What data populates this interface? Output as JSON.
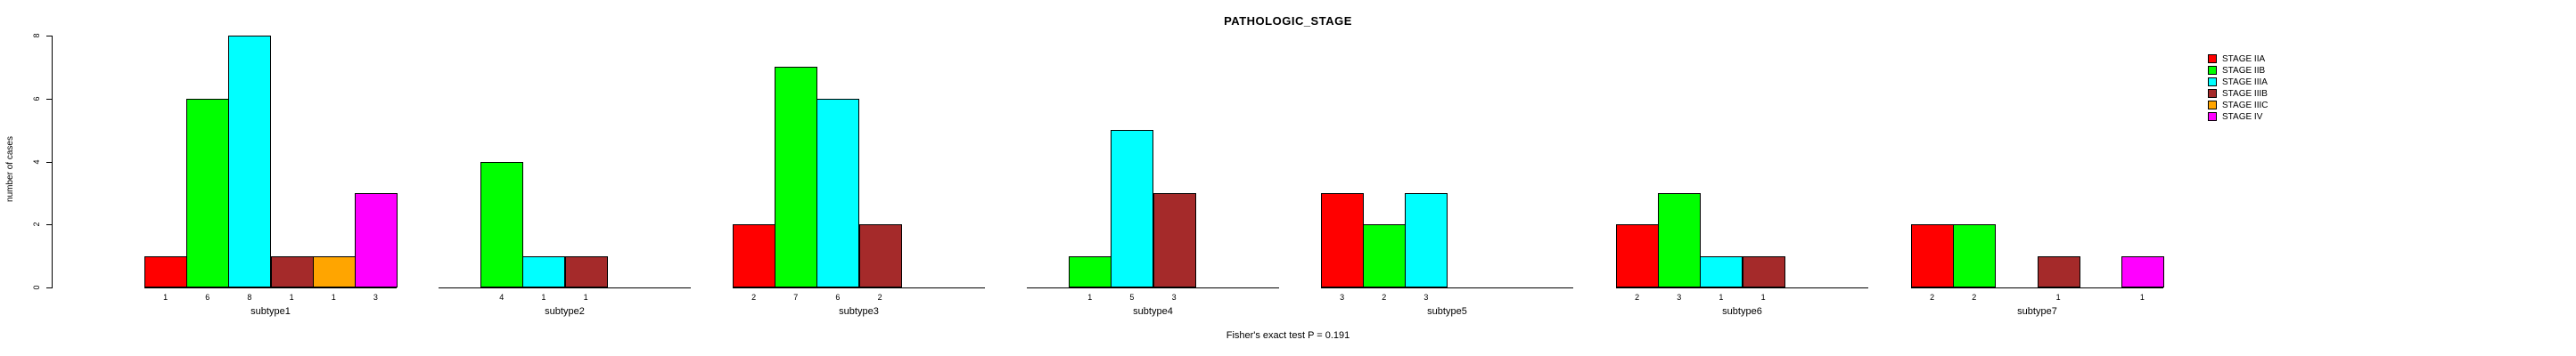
{
  "chart_data": {
    "type": "bar",
    "title": "PATHOLOGIC_STAGE",
    "ylabel": "number of cases",
    "xlabel": "",
    "footer": "Fisher's exact test P = 0.191",
    "ylim": [
      0,
      8
    ],
    "yticks": [
      0,
      2,
      4,
      6,
      8
    ],
    "grid": false,
    "legend_position": "right",
    "bar_value_labels_shown": true,
    "stages": [
      {
        "name": "STAGE IIA",
        "color": "#FF0000"
      },
      {
        "name": "STAGE IIB",
        "color": "#00FF00"
      },
      {
        "name": "STAGE IIIA",
        "color": "#00FFFF"
      },
      {
        "name": "STAGE IIIB",
        "color": "#A52A2A"
      },
      {
        "name": "STAGE IIIC",
        "color": "#FFA500"
      },
      {
        "name": "STAGE IV",
        "color": "#FF00FF"
      }
    ],
    "categories": [
      "subtype1",
      "subtype2",
      "subtype3",
      "subtype4",
      "subtype5",
      "subtype6",
      "subtype7"
    ],
    "groups": [
      {
        "label": "subtype1",
        "values": [
          1,
          6,
          8,
          1,
          1,
          3
        ]
      },
      {
        "label": "subtype2",
        "values": [
          0,
          4,
          1,
          1,
          0,
          0
        ]
      },
      {
        "label": "subtype3",
        "values": [
          2,
          7,
          6,
          2,
          0,
          0
        ]
      },
      {
        "label": "subtype4",
        "values": [
          0,
          1,
          5,
          3,
          0,
          0
        ]
      },
      {
        "label": "subtype5",
        "values": [
          3,
          2,
          3,
          0,
          0,
          0
        ]
      },
      {
        "label": "subtype6",
        "values": [
          2,
          3,
          1,
          1,
          0,
          0
        ]
      },
      {
        "label": "subtype7",
        "values": [
          2,
          2,
          0,
          1,
          0,
          1
        ]
      }
    ]
  }
}
